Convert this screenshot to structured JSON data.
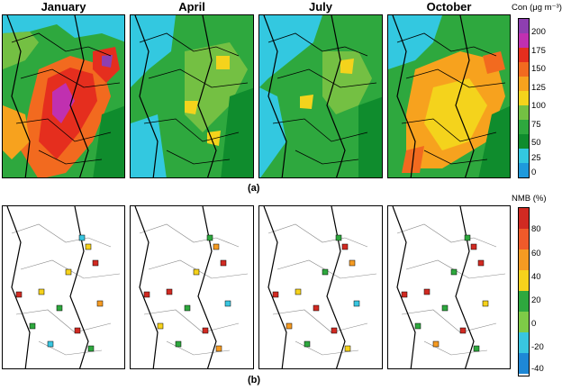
{
  "months": [
    "January",
    "April",
    "July",
    "October"
  ],
  "row_labels": {
    "a": "(a)",
    "b": "(b)"
  },
  "colorbar_con": {
    "title": "Con (μg m⁻³)",
    "ticks": [
      "200",
      "175",
      "150",
      "125",
      "100",
      "75",
      "50",
      "25",
      "0"
    ],
    "colors": [
      "#8e3fb0",
      "#c030b0",
      "#e52e1e",
      "#f26a1f",
      "#f7a21e",
      "#f4d31c",
      "#74c043",
      "#2ea83e",
      "#0f8c2d",
      "#33c8e0",
      "#1e9adc"
    ]
  },
  "colorbar_nmb": {
    "title": "NMB (%)",
    "ticks": [
      "80",
      "60",
      "40",
      "20",
      "0",
      "-20",
      "-40"
    ],
    "colors": [
      "#d12a22",
      "#ef5a2a",
      "#f59b22",
      "#f6d21c",
      "#2ea83e",
      "#7ecb47",
      "#39c6e0",
      "#1e88d6"
    ]
  }
}
